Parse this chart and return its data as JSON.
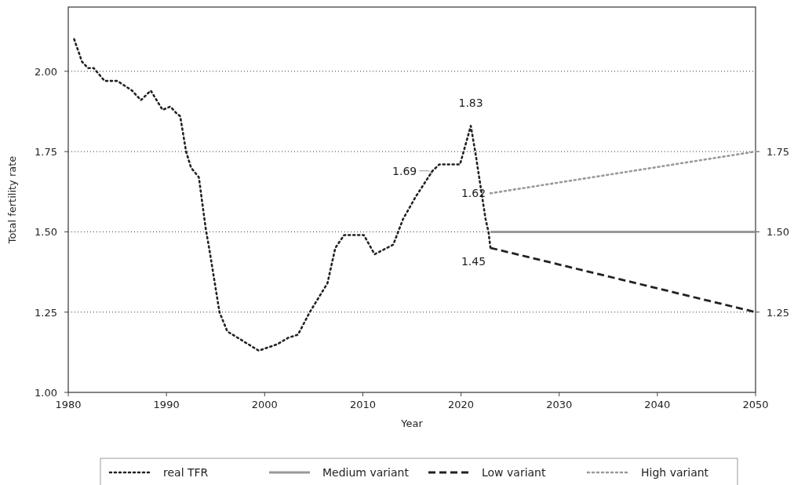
{
  "chart_data": {
    "type": "line",
    "xlabel": "Year",
    "ylabel": "Total fertility rate",
    "xlim": [
      1980,
      2050
    ],
    "xticks": [
      1980,
      1990,
      2000,
      2010,
      2020,
      2030,
      2040,
      2050
    ],
    "ylim": [
      1,
      2.2
    ],
    "yticks": [
      {
        "value": 1,
        "label": "1.00"
      },
      {
        "value": 1.25,
        "label": "1.25"
      },
      {
        "value": 1.5,
        "label": "1.50"
      },
      {
        "value": 1.75,
        "label": "1.75"
      },
      {
        "value": 2,
        "label": "2.00"
      }
    ],
    "y2lim": [
      1,
      2.2
    ],
    "y2ticks": [
      {
        "value": 1.25,
        "label": "1.25"
      },
      {
        "value": 1.5,
        "label": "1.50"
      },
      {
        "value": 1.75,
        "label": "1.75"
      }
    ],
    "grid": "y",
    "legend": "bottom",
    "series": [
      {
        "name": "real TFR",
        "color": "#222222",
        "line_style": "dotted",
        "x": [
          1980.6,
          1981.4,
          1982.0,
          1982.6,
          1983.7,
          1984.4,
          1985.0,
          1986.5,
          1987.4,
          1988.4,
          1989.6,
          1990.4,
          1991.0,
          1991.4,
          1992.0,
          1992.5,
          1993.3,
          1994.0,
          1994.4,
          1995.4,
          1996.2,
          1997.8,
          1999.4,
          2001.3,
          2002.4,
          2003.4,
          2004.6,
          2006.4,
          2007.2,
          2008.1,
          2010.1,
          2011.2,
          2013.1,
          2014.1,
          2015.4,
          2017.1,
          2017.8,
          2019.9,
          2021.0,
          2021.5,
          2022.5,
          2022.8,
          2023
        ],
        "values": [
          2.1,
          2.03,
          2.01,
          2.01,
          1.97,
          1.97,
          1.97,
          1.94,
          1.91,
          1.94,
          1.88,
          1.89,
          1.87,
          1.86,
          1.75,
          1.7,
          1.67,
          1.51,
          1.44,
          1.25,
          1.19,
          1.16,
          1.13,
          1.15,
          1.17,
          1.18,
          1.25,
          1.34,
          1.45,
          1.49,
          1.49,
          1.43,
          1.46,
          1.54,
          1.61,
          1.69,
          1.71,
          1.71,
          1.83,
          1.74,
          1.54,
          1.5,
          1.45
        ]
      },
      {
        "name": "Medium variant",
        "color": "#999999",
        "line_style": "solid",
        "x": [
          2023,
          2050
        ],
        "values": [
          1.5,
          1.5
        ]
      },
      {
        "name": "Low variant",
        "color": "#222222",
        "line_style": "dashed",
        "x": [
          2023,
          2050
        ],
        "values": [
          1.45,
          1.25
        ]
      },
      {
        "name": "High variant",
        "color": "#999999",
        "line_style": "dotted",
        "x": [
          2023,
          2050
        ],
        "values": [
          1.62,
          1.75
        ]
      }
    ],
    "annotations": [
      {
        "text": "1.83",
        "x": 2021,
        "y": 1.83
      },
      {
        "text": "1.69",
        "x": 2017.1,
        "y": 1.69
      },
      {
        "text": "1.62",
        "x": 2023,
        "y": 1.62
      },
      {
        "text": "1.45",
        "x": 2023,
        "y": 1.45
      }
    ]
  }
}
